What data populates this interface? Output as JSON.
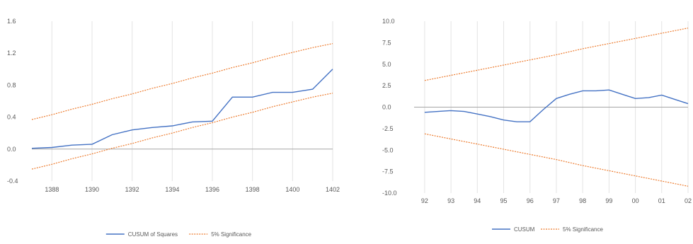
{
  "chart_data": [
    {
      "type": "line",
      "title": "",
      "xlabel": "",
      "ylabel": "",
      "x": [
        1387,
        1388,
        1389,
        1390,
        1391,
        1392,
        1393,
        1394,
        1395,
        1396,
        1397,
        1398,
        1399,
        1400,
        1401,
        1402
      ],
      "x_ticks": [
        "1388",
        "1390",
        "1392",
        "1394",
        "1396",
        "1398",
        "1400",
        "1402"
      ],
      "x_tick_values": [
        1388,
        1390,
        1392,
        1394,
        1396,
        1398,
        1400,
        1402
      ],
      "ylim": [
        -0.4,
        1.6
      ],
      "y_ticks": [
        "-0.4",
        "0.0",
        "0.4",
        "0.8",
        "1.2",
        "1.6"
      ],
      "y_tick_values": [
        -0.4,
        0.0,
        0.4,
        0.8,
        1.2,
        1.6
      ],
      "grid": true,
      "legend_position": "bottom",
      "series": [
        {
          "name": "CUSUM of Squares",
          "style": "solid",
          "color": "#4472C4",
          "values": [
            0.01,
            0.02,
            0.05,
            0.06,
            0.18,
            0.24,
            0.27,
            0.29,
            0.34,
            0.35,
            0.65,
            0.65,
            0.71,
            0.71,
            0.75,
            1.0
          ]
        },
        {
          "name": "5% Significance",
          "style": "dotted",
          "color": "#ED7D31",
          "values": [
            0.37,
            0.43,
            0.5,
            0.56,
            0.63,
            0.69,
            0.76,
            0.82,
            0.89,
            0.95,
            1.02,
            1.08,
            1.15,
            1.21,
            1.27,
            1.32
          ]
        },
        {
          "name": "",
          "style": "dotted",
          "color": "#ED7D31",
          "values": [
            -0.25,
            -0.19,
            -0.12,
            -0.06,
            0.01,
            0.07,
            0.14,
            0.2,
            0.27,
            0.33,
            0.4,
            0.46,
            0.53,
            0.59,
            0.65,
            0.7
          ]
        }
      ],
      "legend": [
        "CUSUM of Squares",
        "5% Significance"
      ]
    },
    {
      "type": "line",
      "title": "",
      "xlabel": "",
      "ylabel": "",
      "x": [
        1392,
        1393,
        1394,
        1395,
        1396,
        1397,
        1398,
        1399,
        1400,
        1401,
        1402
      ],
      "x_ticks": [
        "92",
        "93",
        "94",
        "95",
        "96",
        "97",
        "98",
        "99",
        "00",
        "01",
        "02"
      ],
      "x_tick_values": [
        1392,
        1393,
        1394,
        1395,
        1396,
        1397,
        1398,
        1399,
        1400,
        1401,
        1402
      ],
      "ylim": [
        -10.0,
        10.0
      ],
      "y_ticks": [
        "-10.0",
        "-7.5",
        "-5.0",
        "-2.5",
        "0.0",
        "2.5",
        "5.0",
        "7.5",
        "10.0"
      ],
      "y_tick_values": [
        -10.0,
        -7.5,
        -5.0,
        -2.5,
        0.0,
        2.5,
        5.0,
        7.5,
        10.0
      ],
      "grid": true,
      "legend_position": "bottom",
      "series": [
        {
          "name": "CUSUM",
          "style": "solid",
          "color": "#4472C4",
          "x": [
            1392,
            1392.5,
            1393,
            1393.5,
            1394,
            1394.5,
            1395,
            1395.5,
            1396,
            1396.5,
            1397,
            1397.5,
            1398,
            1398.5,
            1399,
            1399.5,
            1400,
            1400.5,
            1401,
            1401.5,
            1402
          ],
          "values": [
            -0.6,
            -0.5,
            -0.4,
            -0.5,
            -0.8,
            -1.1,
            -1.5,
            -1.7,
            -1.7,
            -0.3,
            1.0,
            1.5,
            1.9,
            1.9,
            2.0,
            1.5,
            1.0,
            1.1,
            1.4,
            0.9,
            0.4
          ]
        },
        {
          "name": "5% Significance",
          "style": "dotted",
          "color": "#ED7D31",
          "values": [
            3.1,
            3.7,
            4.3,
            4.9,
            5.5,
            6.1,
            6.8,
            7.4,
            8.0,
            8.6,
            9.2
          ]
        },
        {
          "name": "",
          "style": "dotted",
          "color": "#ED7D31",
          "values": [
            -3.1,
            -3.7,
            -4.3,
            -4.9,
            -5.5,
            -6.1,
            -6.8,
            -7.4,
            -8.0,
            -8.6,
            -9.2
          ]
        }
      ],
      "legend": [
        "CUSUM",
        "5% Significance"
      ]
    }
  ]
}
